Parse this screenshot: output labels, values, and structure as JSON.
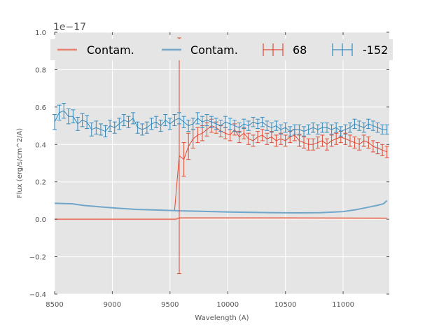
{
  "chart_data": {
    "type": "line",
    "title": "",
    "xlabel": "Wavelength (A)",
    "ylabel": "Flux (erg/s/cm^2/A)",
    "y_offset_label": "1e−17",
    "xlim": [
      8500,
      11400
    ],
    "ylim": [
      -0.4,
      1.0
    ],
    "xticks": [
      8500,
      9000,
      9500,
      10000,
      10500,
      11000
    ],
    "yticks": [
      -0.4,
      -0.2,
      0.0,
      0.2,
      0.4,
      0.6,
      0.8,
      1.0
    ],
    "ytick_labels": [
      "−0.4",
      "−0.2",
      "0.0",
      "0.2",
      "0.4",
      "0.6",
      "0.8",
      "1.0"
    ],
    "grid": true,
    "legend": {
      "placement": "top",
      "entries": [
        {
          "label": "Contam.",
          "kind": "line",
          "color": "#E8806C"
        },
        {
          "label": "Contam.",
          "kind": "line",
          "color": "#6FA6CA"
        },
        {
          "label": "68",
          "kind": "errorbar",
          "color": "#E24A33"
        },
        {
          "label": "-152",
          "kind": "errorbar",
          "color": "#348ABD"
        }
      ]
    },
    "series": [
      {
        "name": "Contam.",
        "kind": "line",
        "color": "#E8806C",
        "x": [
          8500,
          9000,
          9500,
          9550,
          9570,
          9600,
          10000,
          10500,
          11000,
          11380
        ],
        "y": [
          0.0,
          0.0,
          0.0,
          0.0,
          0.005,
          0.007,
          0.007,
          0.007,
          0.006,
          0.005
        ]
      },
      {
        "name": "Contam.",
        "kind": "line",
        "color": "#6FA6CA",
        "x": [
          8500,
          8650,
          8750,
          8900,
          9050,
          9200,
          9400,
          9600,
          9800,
          10000,
          10200,
          10400,
          10600,
          10800,
          11000,
          11100,
          11200,
          11300,
          11350,
          11380
        ],
        "y": [
          0.085,
          0.083,
          0.074,
          0.066,
          0.059,
          0.053,
          0.049,
          0.045,
          0.042,
          0.039,
          0.037,
          0.035,
          0.034,
          0.035,
          0.041,
          0.05,
          0.062,
          0.075,
          0.083,
          0.1
        ]
      },
      {
        "name": "68",
        "kind": "errorbar",
        "color": "#E24A33",
        "x": [
          9540,
          9580,
          9620,
          9660,
          9700,
          9740,
          9780,
          9820,
          9860,
          9900,
          9940,
          9980,
          10020,
          10060,
          10100,
          10140,
          10180,
          10220,
          10260,
          10300,
          10340,
          10380,
          10420,
          10460,
          10500,
          10540,
          10580,
          10620,
          10660,
          10700,
          10740,
          10780,
          10820,
          10860,
          10900,
          10940,
          10980,
          11020,
          11060,
          11100,
          11140,
          11180,
          11220,
          11260,
          11300,
          11340,
          11380
        ],
        "y": [
          0.05,
          0.34,
          0.32,
          0.39,
          0.43,
          0.45,
          0.46,
          0.48,
          0.5,
          0.49,
          0.47,
          0.46,
          0.45,
          0.48,
          0.44,
          0.46,
          0.43,
          0.42,
          0.44,
          0.45,
          0.43,
          0.44,
          0.42,
          0.43,
          0.42,
          0.44,
          0.45,
          0.42,
          0.41,
          0.4,
          0.4,
          0.41,
          0.42,
          0.4,
          0.42,
          0.43,
          0.44,
          0.43,
          0.42,
          0.41,
          0.4,
          0.42,
          0.41,
          0.39,
          0.38,
          0.37,
          0.36
        ],
        "err": [
          0.0,
          0.63,
          0.09,
          0.07,
          0.05,
          0.04,
          0.04,
          0.035,
          0.035,
          0.03,
          0.03,
          0.03,
          0.03,
          0.03,
          0.03,
          0.03,
          0.03,
          0.03,
          0.03,
          0.03,
          0.03,
          0.03,
          0.03,
          0.03,
          0.03,
          0.03,
          0.03,
          0.03,
          0.03,
          0.03,
          0.03,
          0.03,
          0.03,
          0.03,
          0.03,
          0.03,
          0.03,
          0.03,
          0.03,
          0.03,
          0.03,
          0.03,
          0.03,
          0.03,
          0.03,
          0.03,
          0.03
        ]
      },
      {
        "name": "-152",
        "kind": "errorbar",
        "color": "#348ABD",
        "x": [
          8500,
          8540,
          8580,
          8620,
          8660,
          8700,
          8740,
          8780,
          8820,
          8860,
          8900,
          8940,
          8980,
          9020,
          9060,
          9100,
          9140,
          9180,
          9220,
          9260,
          9300,
          9340,
          9380,
          9420,
          9460,
          9500,
          9540,
          9580,
          9620,
          9660,
          9700,
          9740,
          9780,
          9820,
          9860,
          9900,
          9940,
          9980,
          10020,
          10060,
          10100,
          10140,
          10180,
          10220,
          10260,
          10300,
          10340,
          10380,
          10420,
          10460,
          10500,
          10540,
          10580,
          10620,
          10660,
          10700,
          10740,
          10780,
          10820,
          10860,
          10900,
          10940,
          10980,
          11020,
          11060,
          11100,
          11140,
          11180,
          11220,
          11260,
          11300,
          11340,
          11380
        ],
        "y": [
          0.52,
          0.57,
          0.58,
          0.55,
          0.55,
          0.51,
          0.53,
          0.52,
          0.48,
          0.49,
          0.48,
          0.47,
          0.5,
          0.49,
          0.51,
          0.53,
          0.52,
          0.54,
          0.49,
          0.48,
          0.49,
          0.51,
          0.52,
          0.5,
          0.53,
          0.51,
          0.53,
          0.54,
          0.52,
          0.5,
          0.51,
          0.54,
          0.52,
          0.53,
          0.52,
          0.51,
          0.5,
          0.52,
          0.51,
          0.5,
          0.49,
          0.51,
          0.5,
          0.52,
          0.51,
          0.52,
          0.5,
          0.49,
          0.5,
          0.48,
          0.49,
          0.47,
          0.48,
          0.48,
          0.47,
          0.48,
          0.49,
          0.48,
          0.49,
          0.49,
          0.48,
          0.49,
          0.47,
          0.48,
          0.49,
          0.51,
          0.5,
          0.49,
          0.51,
          0.5,
          0.49,
          0.48,
          0.48
        ],
        "err": [
          0.04,
          0.04,
          0.04,
          0.04,
          0.035,
          0.035,
          0.035,
          0.035,
          0.035,
          0.035,
          0.03,
          0.03,
          0.03,
          0.03,
          0.03,
          0.03,
          0.03,
          0.03,
          0.03,
          0.03,
          0.03,
          0.03,
          0.03,
          0.03,
          0.03,
          0.03,
          0.03,
          0.03,
          0.03,
          0.03,
          0.03,
          0.03,
          0.03,
          0.03,
          0.03,
          0.03,
          0.03,
          0.03,
          0.03,
          0.03,
          0.025,
          0.025,
          0.025,
          0.025,
          0.025,
          0.025,
          0.025,
          0.025,
          0.025,
          0.025,
          0.025,
          0.025,
          0.025,
          0.025,
          0.025,
          0.025,
          0.025,
          0.025,
          0.025,
          0.025,
          0.025,
          0.025,
          0.025,
          0.025,
          0.025,
          0.025,
          0.025,
          0.025,
          0.025,
          0.025,
          0.025,
          0.025,
          0.025
        ]
      }
    ]
  }
}
